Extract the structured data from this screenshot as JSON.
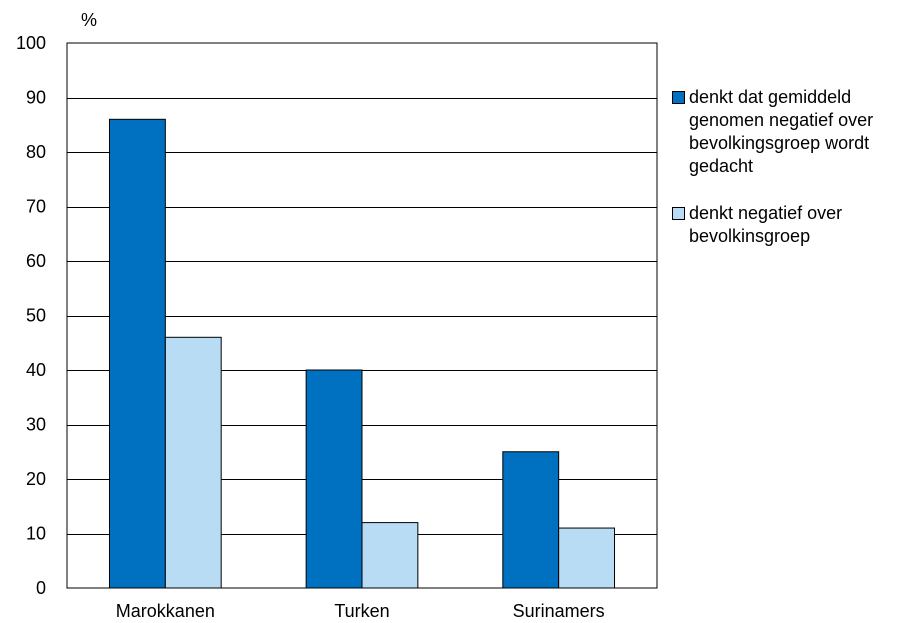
{
  "chart_data": {
    "type": "bar",
    "title": "",
    "xlabel": "",
    "ylabel": "%",
    "ylim": [
      0,
      100
    ],
    "yticks": [
      0,
      10,
      20,
      30,
      40,
      50,
      60,
      70,
      80,
      90,
      100
    ],
    "grid": true,
    "legend_position": "right",
    "categories": [
      "Marokkanen",
      "Turken",
      "Surinamers"
    ],
    "series": [
      {
        "name": "denkt dat gemiddeld genomen negatief over bevolkingsgroep wordt gedacht",
        "color": "#0070C0",
        "values": [
          86,
          40,
          25
        ]
      },
      {
        "name": "denkt negatief over bevolkinsgroep",
        "color": "#B8DCF4",
        "values": [
          46,
          12,
          11
        ]
      }
    ]
  }
}
